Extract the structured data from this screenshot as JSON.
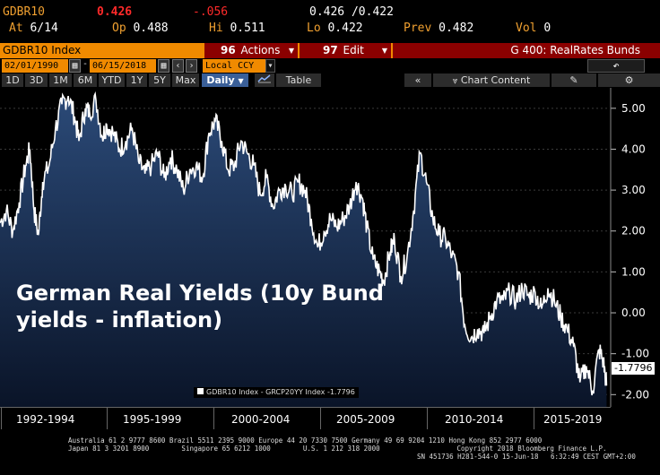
{
  "quote": {
    "ticker": "GDBR10",
    "last": "0.426",
    "change": "-.056",
    "bid_ask": "0.426 /0.422",
    "at_label": "At",
    "at_value": "6/14",
    "op_label": "Op",
    "op_value": "0.488",
    "hi_label": "Hi",
    "hi_value": "0.511",
    "lo_label": "Lo",
    "lo_value": "0.422",
    "prev_label": "Prev",
    "prev_value": "0.482",
    "vol_label": "Vol",
    "vol_value": "0"
  },
  "toolbar": {
    "security": "GDBR10 Index",
    "actions_num": "96",
    "actions_label": "Actions",
    "edit_num": "97",
    "edit_label": "Edit",
    "page": "G 400: RealRates Bunds",
    "start_date": "02/01/1990",
    "end_date": "06/15/2018",
    "currency": "Local CCY",
    "ranges": [
      "1D",
      "3D",
      "1M",
      "6M",
      "YTD",
      "1Y",
      "5Y",
      "Max"
    ],
    "frequency": "Daily",
    "table_label": "Table",
    "chart_content": "Chart Content"
  },
  "chart_data": {
    "type": "area",
    "title": "German Real Yields (10y Bund yields - inflation)",
    "legend": "GDBR10 Index - GRCP20YY Index -1.7796",
    "last_value_label": "-1.7796",
    "ylim": [
      -2.3,
      5.5
    ],
    "yticks": [
      "5.00",
      "4.00",
      "3.00",
      "2.00",
      "1.00",
      "0.00",
      "-1.00",
      "-2.00"
    ],
    "ytick_values": [
      5,
      4,
      3,
      2,
      1,
      0,
      -1,
      -2
    ],
    "xtick_labels": [
      "1992-1994",
      "1995-1999",
      "2000-2004",
      "2005-2009",
      "2010-2014",
      "2015-2019"
    ],
    "x": [
      1990.0,
      1990.3,
      1990.6,
      1990.9,
      1991.2,
      1991.4,
      1991.6,
      1991.8,
      1992.0,
      1992.3,
      1992.6,
      1992.9,
      1993.2,
      1993.5,
      1993.7,
      1994.0,
      1994.2,
      1994.5,
      1994.8,
      1995.0,
      1995.3,
      1995.6,
      1995.9,
      1996.2,
      1996.5,
      1996.8,
      1997.1,
      1997.4,
      1997.7,
      1998.0,
      1998.3,
      1998.6,
      1998.9,
      1999.2,
      1999.5,
      1999.8,
      2000.1,
      2000.4,
      2000.7,
      2001.0,
      2001.3,
      2001.6,
      2001.9,
      2002.2,
      2002.5,
      2002.8,
      2003.1,
      2003.4,
      2003.7,
      2004.0,
      2004.3,
      2004.6,
      2004.9,
      2005.2,
      2005.5,
      2005.8,
      2006.1,
      2006.4,
      2006.7,
      2007.0,
      2007.2,
      2007.5,
      2007.8,
      2008.0,
      2008.3,
      2008.5,
      2008.8,
      2009.1,
      2009.4,
      2009.7,
      2010.0,
      2010.3,
      2010.6,
      2010.9,
      2011.2,
      2011.5,
      2011.8,
      2012.1,
      2012.4,
      2012.7,
      2013.0,
      2013.3,
      2013.6,
      2013.9,
      2014.2,
      2014.5,
      2014.8,
      2015.1,
      2015.4,
      2015.7,
      2016.0,
      2016.3,
      2016.6,
      2016.9,
      2017.2,
      2017.5,
      2017.8,
      2018.1,
      2018.3,
      2018.45
    ],
    "values": [
      2.2,
      2.5,
      2.0,
      2.7,
      3.6,
      4.0,
      2.5,
      1.9,
      3.2,
      3.6,
      4.5,
      5.1,
      5.3,
      4.8,
      4.2,
      5.0,
      4.9,
      5.2,
      4.3,
      4.6,
      4.4,
      4.0,
      4.2,
      4.5,
      3.7,
      3.4,
      3.6,
      3.9,
      3.3,
      3.8,
      3.5,
      3.0,
      3.5,
      3.6,
      3.3,
      4.4,
      4.7,
      4.2,
      3.5,
      3.6,
      4.2,
      3.9,
      3.6,
      2.9,
      3.3,
      2.6,
      3.0,
      3.1,
      2.9,
      3.2,
      3.0,
      2.3,
      1.6,
      2.0,
      2.3,
      2.1,
      2.3,
      2.6,
      3.2,
      2.8,
      2.1,
      1.3,
      1.0,
      0.8,
      1.5,
      1.8,
      0.9,
      1.4,
      2.5,
      3.9,
      3.2,
      2.3,
      1.9,
      1.8,
      1.4,
      1.0,
      -0.3,
      -0.6,
      -0.4,
      -0.5,
      -0.1,
      0.3,
      0.3,
      0.5,
      0.3,
      0.6,
      0.4,
      0.5,
      0.1,
      0.6,
      0.3,
      -0.1,
      -0.4,
      -0.8,
      -1.7,
      -1.3,
      -1.9,
      -0.9,
      -1.2,
      -1.78
    ]
  },
  "footer": {
    "line1": "Australia 61 2 9777 8600 Brazil 5511 2395 9000 Europe 44 20 7330 7500 Germany 49 69 9204 1210 Hong Kong 852 2977 6000",
    "line2": "Japan 81 3 3201 8900        Singapore 65 6212 1000        U.S. 1 212 318 2000                   Copyright 2018 Bloomberg Finance L.P.",
    "line3": "SN 451736 H281-544-0 15-Jun-18   6:32:49 CEST GMT+2:00"
  },
  "colors": {
    "accent": "#f08a00",
    "alert": "#ff2a2a",
    "area_top": "#2b4a78",
    "area_bottom": "#0a1428",
    "line": "#ffffff"
  }
}
